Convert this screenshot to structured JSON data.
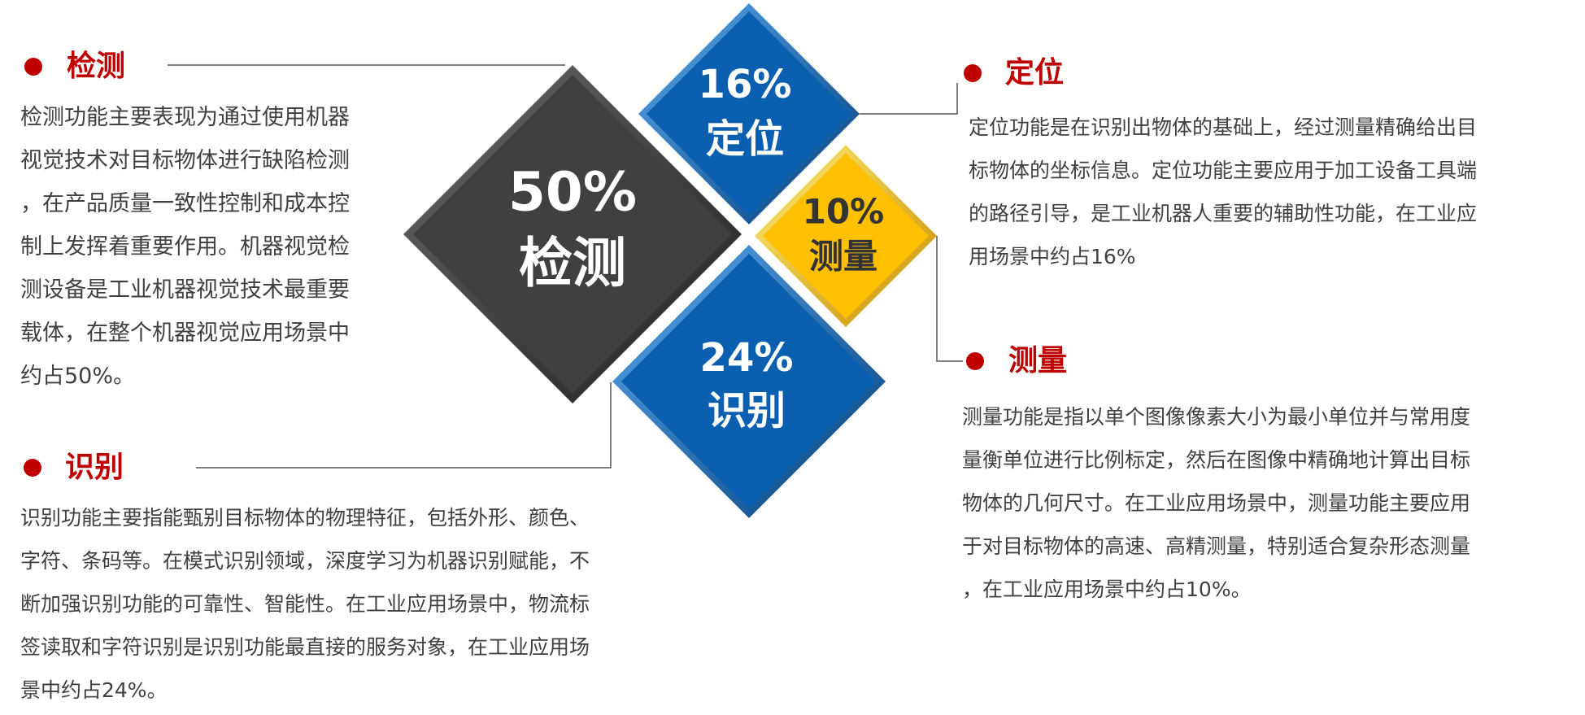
{
  "colors": {
    "accent": "#c00000",
    "dark": "#404040",
    "blue": "#0a5fb0",
    "yellow": "#ffc000",
    "text": "#404040"
  },
  "diamonds": {
    "detect": {
      "percent": "50%",
      "label": "检测"
    },
    "locate": {
      "percent": "16%",
      "label": "定位"
    },
    "measure": {
      "percent": "10%",
      "label": "测量"
    },
    "identify": {
      "percent": "24%",
      "label": "识别"
    }
  },
  "sections": {
    "detect": {
      "title": "检测",
      "lines": [
        "检测功能主要表现为通过使用机器",
        "视觉技术对目标物体进行缺陷检测",
        "，在产品质量一致性控制和成本控",
        "制上发挥着重要作用。机器视觉检",
        "测设备是工业机器视觉技术最重要",
        "载体，在整个机器视觉应用场景中",
        "约占50%。"
      ]
    },
    "locate": {
      "title": "定位",
      "lines": [
        "定位功能是在识别出物体的基础上，经过测量精确给出目",
        "标物体的坐标信息。定位功能主要应用于加工设备工具端",
        "的路径引导，是工业机器人重要的辅助性功能，在工业应",
        "用场景中约占16%"
      ]
    },
    "measure": {
      "title": "测量",
      "lines": [
        "测量功能是指以单个图像像素大小为最小单位并与常用度",
        "量衡单位进行比例标定，然后在图像中精确地计算出目标",
        "物体的几何尺寸。在工业应用场景中，测量功能主要应用",
        "于对目标物体的高速、高精测量，特别适合复杂形态测量",
        "，在工业应用场景中约占10%。"
      ]
    },
    "identify": {
      "title": "识别",
      "lines": [
        "识别功能主要指能甄别目标物体的物理特征，包括外形、颜色、",
        "字符、条码等。在模式识别领域，深度学习为机器识别赋能，不",
        "断加强识别功能的可靠性、智能性。在工业应用场景中，物流标",
        "签读取和字符识别是识别功能最直接的服务对象，在工业应用场",
        "景中约占24%。"
      ]
    }
  }
}
